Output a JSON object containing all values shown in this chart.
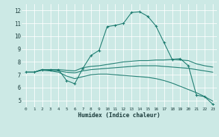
{
  "xlabel": "Humidex (Indice chaleur)",
  "background_color": "#cce9e5",
  "grid_color": "#ffffff",
  "line_color": "#1a7a6e",
  "xlim": [
    -0.5,
    23.5
  ],
  "ylim": [
    4.5,
    12.5
  ],
  "xtick_labels": [
    "0",
    "1",
    "2",
    "3",
    "4",
    "5",
    "6",
    "7",
    "8",
    "9",
    "10",
    "11",
    "12",
    "13",
    "14",
    "15",
    "16",
    "17",
    "18",
    "19",
    "20",
    "21",
    "22",
    "23"
  ],
  "ytick_labels": [
    "5",
    "6",
    "7",
    "8",
    "9",
    "10",
    "11",
    "12"
  ],
  "series": [
    {
      "x": [
        0,
        1,
        2,
        3,
        4,
        5,
        6,
        7,
        8,
        9,
        10,
        11,
        12,
        13,
        14,
        15,
        16,
        17,
        18,
        19,
        20,
        21,
        22,
        23
      ],
      "y": [
        7.2,
        7.2,
        7.4,
        7.4,
        7.4,
        6.55,
        6.3,
        7.5,
        8.5,
        8.9,
        10.75,
        10.85,
        11.0,
        11.85,
        11.9,
        11.55,
        10.8,
        9.5,
        8.2,
        8.25,
        7.7,
        5.4,
        5.3,
        4.7
      ],
      "marker": "+"
    },
    {
      "x": [
        0,
        1,
        2,
        3,
        4,
        5,
        6,
        7,
        8,
        9,
        10,
        11,
        12,
        13,
        14,
        15,
        16,
        17,
        18,
        19,
        20,
        21,
        22,
        23
      ],
      "y": [
        7.2,
        7.2,
        7.4,
        7.4,
        7.4,
        7.35,
        7.3,
        7.55,
        7.65,
        7.7,
        7.8,
        7.9,
        8.0,
        8.05,
        8.1,
        8.1,
        8.15,
        8.15,
        8.2,
        8.15,
        8.1,
        7.85,
        7.7,
        7.6
      ],
      "marker": null
    },
    {
      "x": [
        0,
        1,
        2,
        3,
        4,
        5,
        6,
        7,
        8,
        9,
        10,
        11,
        12,
        13,
        14,
        15,
        16,
        17,
        18,
        19,
        20,
        21,
        22,
        23
      ],
      "y": [
        7.2,
        7.2,
        7.4,
        7.35,
        7.3,
        7.2,
        7.15,
        7.3,
        7.4,
        7.45,
        7.5,
        7.55,
        7.6,
        7.65,
        7.7,
        7.7,
        7.7,
        7.65,
        7.6,
        7.55,
        7.5,
        7.4,
        7.3,
        7.2
      ],
      "marker": null
    },
    {
      "x": [
        0,
        1,
        2,
        3,
        4,
        5,
        6,
        7,
        8,
        9,
        10,
        11,
        12,
        13,
        14,
        15,
        16,
        17,
        18,
        19,
        20,
        21,
        22,
        23
      ],
      "y": [
        7.2,
        7.2,
        7.35,
        7.3,
        7.2,
        6.9,
        6.7,
        6.85,
        7.0,
        7.05,
        7.05,
        7.0,
        6.95,
        6.9,
        6.85,
        6.8,
        6.7,
        6.55,
        6.35,
        6.1,
        5.85,
        5.6,
        5.3,
        4.95
      ],
      "marker": null
    }
  ]
}
